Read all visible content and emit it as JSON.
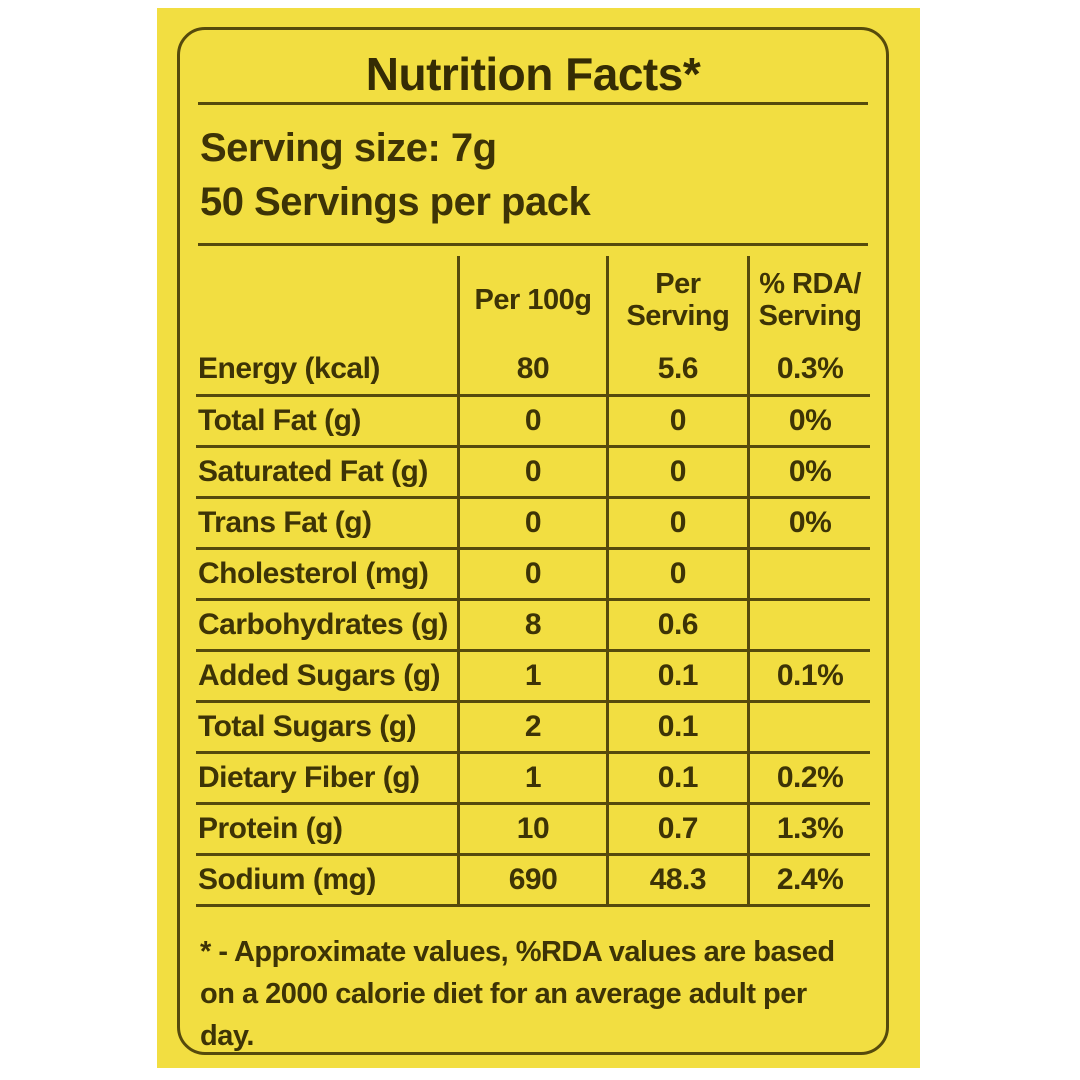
{
  "label": {
    "title": "Nutrition Facts*",
    "serving_size": "Serving size: 7g",
    "servings_per_pack": "50 Servings per pack"
  },
  "table": {
    "headers": [
      "",
      "Per 100g",
      "Per\nServing",
      "% RDA/\nServing"
    ],
    "rows": [
      {
        "name": "Energy (kcal)",
        "per_100g": "80",
        "per_serving": "5.6",
        "rda_serving": "0.3%"
      },
      {
        "name": "Total Fat (g)",
        "per_100g": "0",
        "per_serving": "0",
        "rda_serving": "0%"
      },
      {
        "name": "Saturated Fat (g)",
        "per_100g": "0",
        "per_serving": "0",
        "rda_serving": "0%"
      },
      {
        "name": "Trans Fat (g)",
        "per_100g": "0",
        "per_serving": "0",
        "rda_serving": "0%"
      },
      {
        "name": "Cholesterol (mg)",
        "per_100g": "0",
        "per_serving": "0",
        "rda_serving": ""
      },
      {
        "name": "Carbohydrates (g)",
        "per_100g": "8",
        "per_serving": "0.6",
        "rda_serving": ""
      },
      {
        "name": "Added Sugars (g)",
        "per_100g": "1",
        "per_serving": "0.1",
        "rda_serving": "0.1%"
      },
      {
        "name": "Total Sugars (g)",
        "per_100g": "2",
        "per_serving": "0.1",
        "rda_serving": ""
      },
      {
        "name": "Dietary Fiber (g)",
        "per_100g": "1",
        "per_serving": "0.1",
        "rda_serving": "0.2%"
      },
      {
        "name": "Protein (g)",
        "per_100g": "10",
        "per_serving": "0.7",
        "rda_serving": "1.3%"
      },
      {
        "name": "Sodium (mg)",
        "per_100g": "690",
        "per_serving": "48.3",
        "rda_serving": "2.4%"
      }
    ]
  },
  "footnote": {
    "line1": "* - Approximate values, %RDA values are based",
    "line2": "on a 2000 calorie diet for an average adult per day."
  },
  "colors": {
    "background_yellow": "#f2de41",
    "text_ink": "#3d3306",
    "rule_line": "#564a0c",
    "page_white": "#ffffff"
  }
}
